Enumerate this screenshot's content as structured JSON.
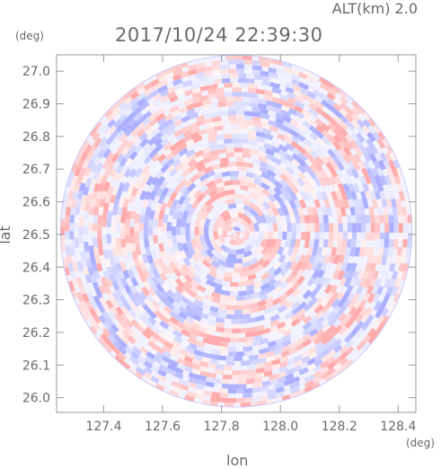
{
  "header": {
    "altitude_label": "ALT(km) 2.0",
    "timestamp": "2017/10/24 22:39:30"
  },
  "chart_data": {
    "type": "heatmap",
    "title": "2017/10/24 22:39:30",
    "xlabel": "lon",
    "ylabel": "lat",
    "x_unit": "(deg)",
    "y_unit": "(deg)",
    "xlim": [
      127.24,
      128.46
    ],
    "ylim": [
      25.955,
      27.05
    ],
    "x_ticks": [
      127.4,
      127.6,
      127.8,
      128.0,
      128.2,
      128.4
    ],
    "y_ticks": [
      26.0,
      26.1,
      26.2,
      26.3,
      26.4,
      26.5,
      26.6,
      26.7,
      26.8,
      26.9,
      27.0
    ],
    "center": {
      "lon": 127.85,
      "lat": 26.51
    },
    "radius_deg_lat": 0.54,
    "colormap": {
      "negative": "#9aa0ff",
      "zero": "#ffffff",
      "positive": "#ff9c9c"
    },
    "grid": false
  }
}
